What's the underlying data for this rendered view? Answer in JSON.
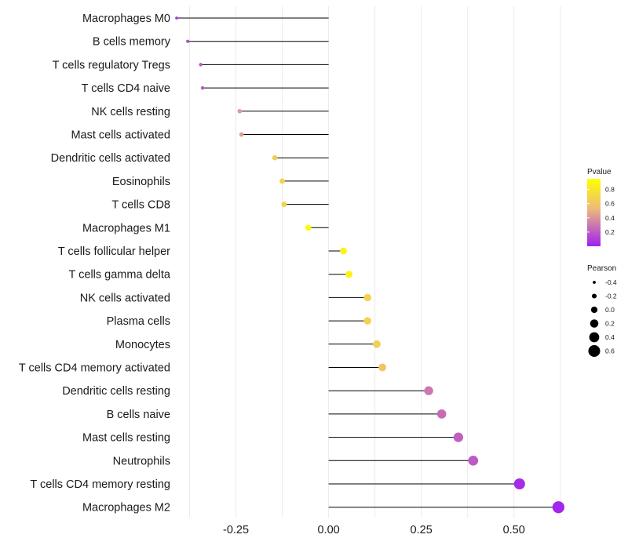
{
  "chart_data": {
    "type": "lollipop",
    "title": "",
    "xlabel": "",
    "ylabel": "",
    "xlim": [
      -0.41,
      0.67
    ],
    "x_ticks": [
      -0.25,
      0.0,
      0.25,
      0.5
    ],
    "x_tick_labels": [
      "-0.25",
      "0.00",
      "0.25",
      "0.50"
    ],
    "categories": [
      "Macrophages M0",
      "B cells memory",
      "T cells regulatory  Tregs",
      "T cells CD4 naive",
      "NK cells resting",
      "Mast cells activated",
      "Dendritic cells activated",
      "Eosinophils",
      "T cells CD8",
      "Macrophages M1",
      "T cells follicular helper",
      "T cells gamma delta",
      "NK cells activated",
      "Plasma cells",
      "Monocytes",
      "T cells CD4 memory activated",
      "Dendritic cells resting",
      "B cells naive",
      "Mast cells resting",
      "Neutrophils",
      "T cells CD4 memory resting",
      "Macrophages M2"
    ],
    "pearson": [
      -0.41,
      -0.38,
      -0.345,
      -0.34,
      -0.24,
      -0.235,
      -0.145,
      -0.125,
      -0.12,
      -0.055,
      0.04,
      0.055,
      0.105,
      0.105,
      0.13,
      0.145,
      0.27,
      0.305,
      0.35,
      0.39,
      0.515,
      0.62
    ],
    "pvalue": [
      0.08,
      0.15,
      0.18,
      0.18,
      0.42,
      0.42,
      0.64,
      0.68,
      0.68,
      0.92,
      0.88,
      0.88,
      0.68,
      0.68,
      0.65,
      0.6,
      0.3,
      0.26,
      0.22,
      0.2,
      0.04,
      0.02
    ],
    "legend_pvalue": {
      "title": "Pvalue",
      "ticks": [
        0.8,
        0.6,
        0.4,
        0.2
      ],
      "tick_labels": [
        "0.8",
        "0.6",
        "0.4",
        "0.2"
      ],
      "range": [
        0.0,
        0.95
      ],
      "color_low": "#A020F0",
      "color_mid": "#EDB87E",
      "color_high": "#FFFF00"
    },
    "legend_pearson": {
      "title": "Pearson",
      "values": [
        -0.4,
        -0.2,
        0.0,
        0.2,
        0.4,
        0.6
      ],
      "labels": [
        "-0.4",
        "-0.2",
        "0.0",
        "0.2",
        "0.4",
        "0.6"
      ]
    },
    "grid": true,
    "legend_position": "right"
  }
}
